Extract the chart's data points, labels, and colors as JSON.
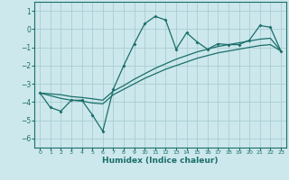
{
  "xlabel": "Humidex (Indice chaleur)",
  "background_color": "#cce8ec",
  "grid_color": "#aacdd4",
  "line_color": "#1a6e6a",
  "x_data": [
    0,
    1,
    2,
    3,
    4,
    5,
    6,
    7,
    8,
    9,
    10,
    11,
    12,
    13,
    14,
    15,
    16,
    17,
    18,
    19,
    20,
    21,
    22,
    23
  ],
  "y_main": [
    -3.5,
    -4.3,
    -4.5,
    -3.9,
    -3.9,
    -4.7,
    -5.6,
    -3.3,
    -2.0,
    -0.8,
    0.3,
    0.7,
    0.5,
    -1.1,
    -0.2,
    -0.7,
    -1.1,
    -0.8,
    -0.85,
    -0.85,
    -0.6,
    0.2,
    0.1,
    -1.2
  ],
  "y_line1": [
    -3.5,
    -3.65,
    -3.8,
    -3.9,
    -3.95,
    -4.05,
    -4.1,
    -3.6,
    -3.3,
    -3.0,
    -2.7,
    -2.45,
    -2.2,
    -2.0,
    -1.8,
    -1.6,
    -1.45,
    -1.3,
    -1.2,
    -1.1,
    -1.0,
    -0.9,
    -0.85,
    -1.2
  ],
  "y_line2": [
    -3.5,
    -3.55,
    -3.6,
    -3.7,
    -3.75,
    -3.82,
    -3.9,
    -3.4,
    -3.1,
    -2.75,
    -2.45,
    -2.15,
    -1.9,
    -1.65,
    -1.45,
    -1.25,
    -1.1,
    -0.95,
    -0.85,
    -0.75,
    -0.65,
    -0.55,
    -0.5,
    -1.2
  ],
  "ylim": [
    -6.5,
    1.5
  ],
  "xlim": [
    -0.5,
    23.5
  ],
  "yticks": [
    -6,
    -5,
    -4,
    -3,
    -2,
    -1,
    0,
    1
  ],
  "xticks": [
    0,
    1,
    2,
    3,
    4,
    5,
    6,
    7,
    8,
    9,
    10,
    11,
    12,
    13,
    14,
    15,
    16,
    17,
    18,
    19,
    20,
    21,
    22,
    23
  ]
}
